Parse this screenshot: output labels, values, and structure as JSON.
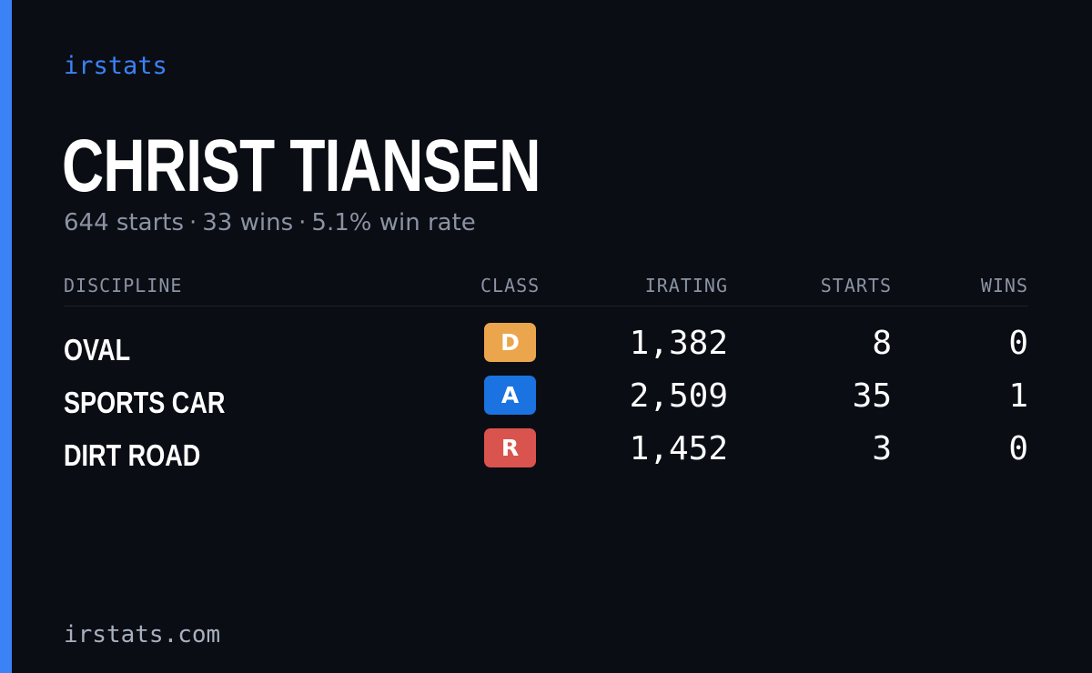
{
  "brand": "irstats",
  "driver": {
    "name": "CHRIST TIANSEN"
  },
  "summary": {
    "starts": "644 starts",
    "wins": "33 wins",
    "win_rate": "5.1% win rate",
    "separator": "·"
  },
  "table": {
    "headers": {
      "discipline": "DISCIPLINE",
      "class": "CLASS",
      "irating": "IRATING",
      "starts": "STARTS",
      "wins": "WINS"
    },
    "rows": [
      {
        "discipline": "OVAL",
        "class": "D",
        "class_color": "#eba54c",
        "irating": "1,382",
        "starts": "8",
        "wins": "0"
      },
      {
        "discipline": "SPORTS CAR",
        "class": "A",
        "class_color": "#1a73e0",
        "irating": "2,509",
        "starts": "35",
        "wins": "1"
      },
      {
        "discipline": "DIRT ROAD",
        "class": "R",
        "class_color": "#d9534f",
        "irating": "1,452",
        "starts": "3",
        "wins": "0"
      }
    ]
  },
  "footer": "irstats.com",
  "colors": {
    "background": "#0a0d14",
    "accent": "#3b82f6",
    "muted_text": "#8b93a3"
  }
}
